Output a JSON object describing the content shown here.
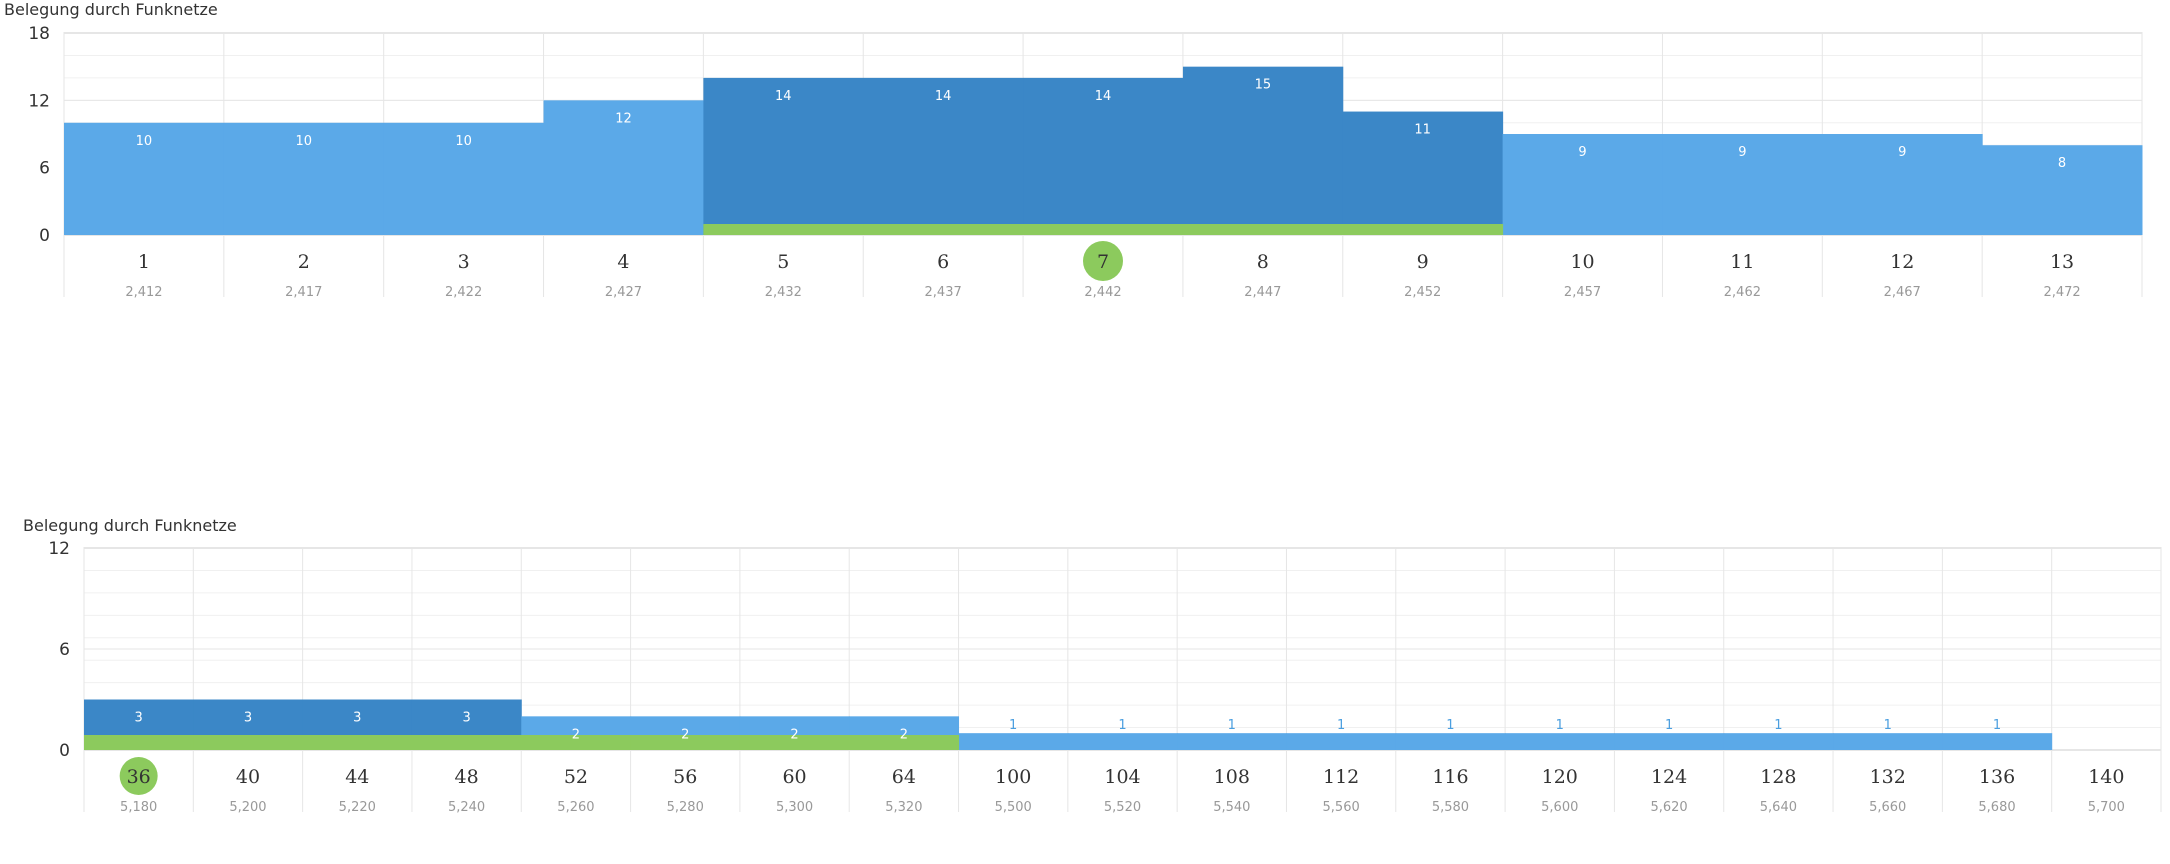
{
  "colors": {
    "light_bar": "#5ba9e8",
    "dark_bar": "#3b87c7",
    "highlight": "#8cca5d",
    "grid": "#e6e6e6",
    "axis": "#cccccc",
    "label_in": "#ffffff",
    "label_out": "#4b9fe0"
  },
  "chart_data": [
    {
      "type": "bar",
      "title": "Belegung durch Funknetze",
      "y_ticks": [
        "18",
        "12",
        "6",
        "0"
      ],
      "ylim": [
        0,
        18
      ],
      "grid": true,
      "selected_channel": "7",
      "channels": [
        "1",
        "2",
        "3",
        "4",
        "5",
        "6",
        "7",
        "8",
        "9",
        "10",
        "11",
        "12",
        "13"
      ],
      "frequencies": [
        "2,412",
        "2,417",
        "2,422",
        "2,427",
        "2,432",
        "2,437",
        "2,442",
        "2,447",
        "2,452",
        "2,457",
        "2,462",
        "2,467",
        "2,472"
      ],
      "values": [
        10,
        10,
        10,
        12,
        14,
        14,
        14,
        15,
        11,
        9,
        9,
        9,
        8
      ],
      "value_labels": [
        "10",
        "10",
        "10",
        "12",
        "14",
        "14",
        "14",
        "15",
        "11",
        "9",
        "9",
        "9",
        "8"
      ],
      "highlighted_channels": [
        "5",
        "6",
        "7",
        "8",
        "9"
      ]
    },
    {
      "type": "bar",
      "title": "Belegung durch Funknetze",
      "y_ticks": [
        "12",
        "6",
        "0"
      ],
      "ylim": [
        0,
        12
      ],
      "grid": true,
      "selected_channel": "36",
      "channels": [
        "36",
        "40",
        "44",
        "48",
        "52",
        "56",
        "60",
        "64",
        "100",
        "104",
        "108",
        "112",
        "116",
        "120",
        "124",
        "128",
        "132",
        "136",
        "140"
      ],
      "frequencies": [
        "5,180",
        "5,200",
        "5,220",
        "5,240",
        "5,260",
        "5,280",
        "5,300",
        "5,320",
        "5,500",
        "5,520",
        "5,540",
        "5,560",
        "5,580",
        "5,600",
        "5,620",
        "5,640",
        "5,660",
        "5,680",
        "5,700"
      ],
      "values": [
        3,
        3,
        3,
        3,
        2,
        2,
        2,
        2,
        1,
        1,
        1,
        1,
        1,
        1,
        1,
        1,
        1,
        1,
        0
      ],
      "value_labels": [
        "3",
        "3",
        "3",
        "3",
        "2",
        "2",
        "2",
        "2",
        "1",
        "1",
        "1",
        "1",
        "1",
        "1",
        "1",
        "1",
        "1",
        "1",
        ""
      ],
      "highlighted_channels": [
        "36",
        "40",
        "44",
        "48",
        "52",
        "56",
        "60",
        "64"
      ]
    }
  ]
}
